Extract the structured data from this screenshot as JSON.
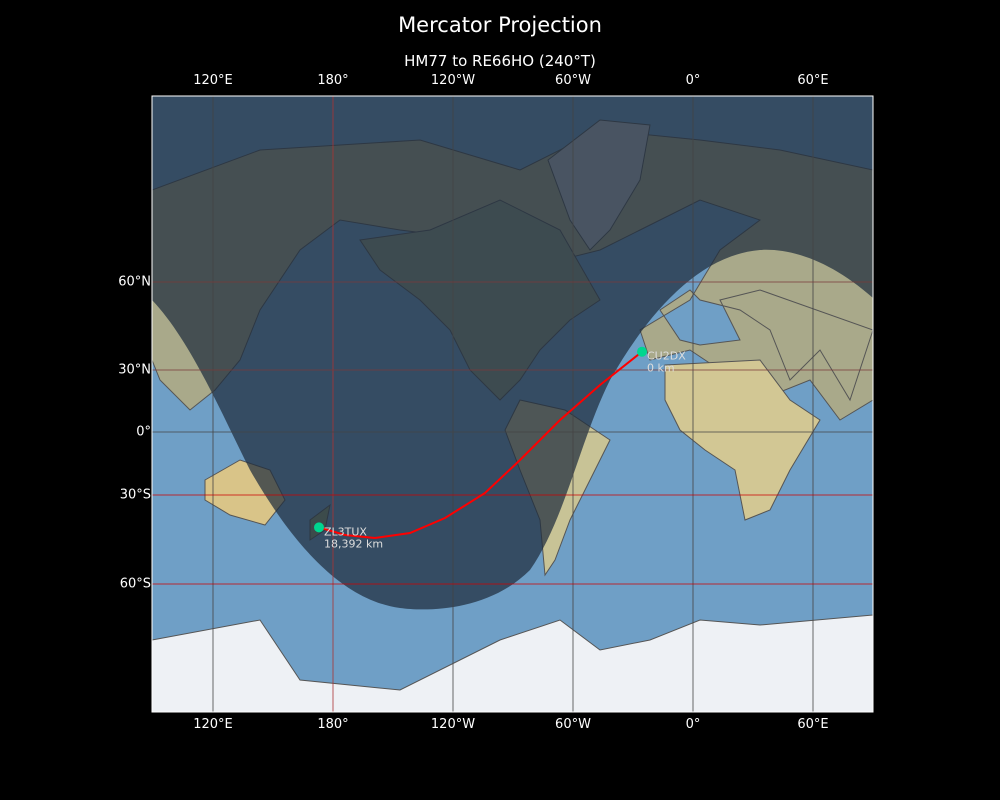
{
  "title": "Mercator Projection",
  "subtitle": "HM77 to RE66HO (240°T)",
  "lon_ticks": [
    "120°E",
    "180°",
    "120°W",
    "60°W",
    "0°",
    "60°E"
  ],
  "lat_ticks": [
    "60°N",
    "30°N",
    "0°",
    "30°S",
    "60°S"
  ],
  "colors": {
    "path": "#ff0000",
    "station": "#00d68f",
    "ocean": "#6f9fc6",
    "night_shade": "#1e2d3d"
  },
  "stations": [
    {
      "call": "CU2DX",
      "distance": "0 km",
      "lon": -25.5,
      "lat": 37.7
    },
    {
      "call": "ZL3TUX",
      "distance": "18,392 km",
      "lon": 173,
      "lat": -43.5
    }
  ]
}
